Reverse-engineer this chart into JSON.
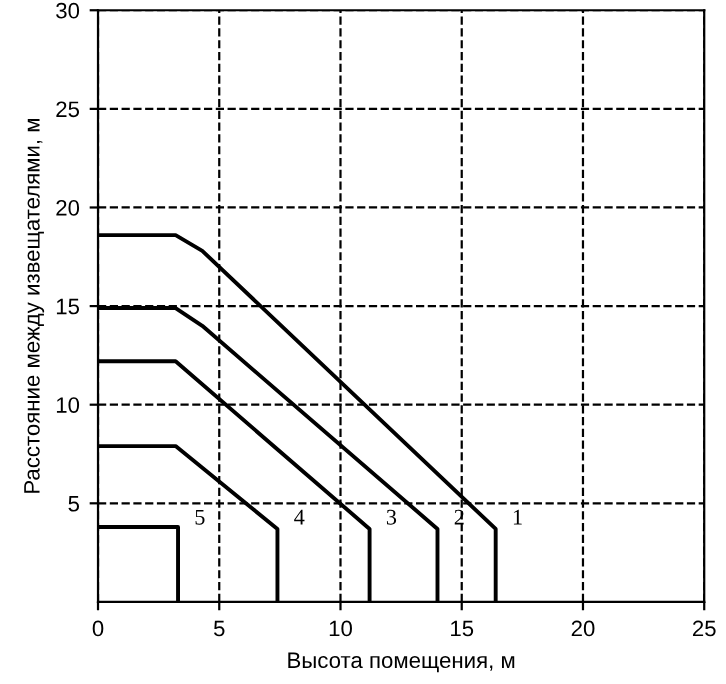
{
  "chart_data": {
    "type": "line",
    "xlabel": "Высота помещения, м",
    "ylabel": "Расстояние между извещателями, м",
    "xlim": [
      0,
      25
    ],
    "ylim": [
      0,
      30
    ],
    "xticks": [
      0,
      5,
      10,
      15,
      20,
      25
    ],
    "yticks": [
      5,
      10,
      15,
      20,
      25,
      30
    ],
    "grid": true,
    "marker": "none",
    "line_style": "solid",
    "series": [
      {
        "color": "#000000",
        "x": [
          0,
          3.2,
          4.3,
          16.4,
          16.4
        ],
        "values": [
          18.6,
          18.6,
          17.8,
          3.7,
          0
        ]
      },
      {
        "color": "#000000",
        "x": [
          0,
          3.2,
          4.3,
          14.0,
          14.0
        ],
        "values": [
          14.9,
          14.9,
          14.0,
          3.7,
          0
        ]
      },
      {
        "color": "#000000",
        "x": [
          0,
          3.2,
          11.2,
          11.2
        ],
        "values": [
          12.2,
          12.2,
          3.7,
          0
        ]
      },
      {
        "color": "#000000",
        "x": [
          0,
          3.2,
          7.4,
          7.4
        ],
        "values": [
          7.9,
          7.9,
          3.7,
          0
        ]
      },
      {
        "color": "#000000",
        "x": [
          0,
          3.3,
          3.3
        ],
        "values": [
          3.8,
          3.8,
          0
        ]
      }
    ],
    "annotations": [
      "1",
      "2",
      "3",
      "4",
      "5"
    ]
  }
}
